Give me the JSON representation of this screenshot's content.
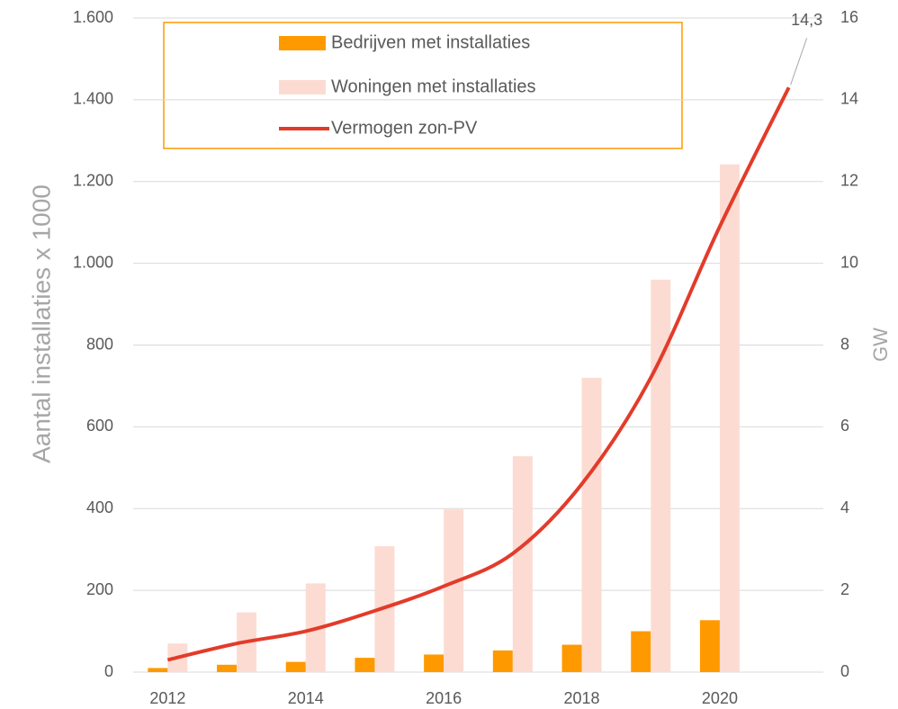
{
  "chart_data": {
    "type": "bar-line",
    "categories": [
      "2012",
      null,
      "2014",
      null,
      "2016",
      null,
      "2018",
      null,
      "2020",
      null
    ],
    "ylabel": "Aantal installaties x 1000",
    "y2label": "GW",
    "ylim": [
      0,
      1600
    ],
    "yticks": [
      0,
      200,
      400,
      600,
      800,
      {
        "value": 1000,
        "label": "1.000"
      },
      {
        "value": 1200,
        "label": "1.200"
      },
      {
        "value": 1400,
        "label": "1.400"
      },
      {
        "value": 1600,
        "label": "1.600"
      }
    ],
    "y2lim": [
      0,
      16
    ],
    "y2ticks": [
      0,
      2,
      4,
      6,
      8,
      10,
      12,
      14,
      16
    ],
    "grid": true,
    "legend": "top",
    "series": [
      {
        "name": "Bedrijven met installaties",
        "type": "bar",
        "color": "#ff9900",
        "values": [
          10,
          18,
          25,
          35,
          43,
          53,
          67,
          100,
          127,
          null
        ]
      },
      {
        "name": "Woningen met installaties",
        "type": "bar",
        "color": "#fcdcd2",
        "values": [
          70,
          146,
          217,
          308,
          398,
          528,
          720,
          960,
          1242,
          null
        ]
      },
      {
        "name": "Vermogen zon-PV",
        "type": "line",
        "axis": "y2",
        "color": "#e33b2a",
        "values": [
          0.3,
          0.7,
          1.0,
          1.5,
          2.1,
          2.9,
          4.6,
          7.2,
          10.9,
          14.3
        ],
        "value_labels": [
          null,
          null,
          null,
          null,
          null,
          null,
          null,
          null,
          null,
          "14,3"
        ]
      }
    ]
  }
}
